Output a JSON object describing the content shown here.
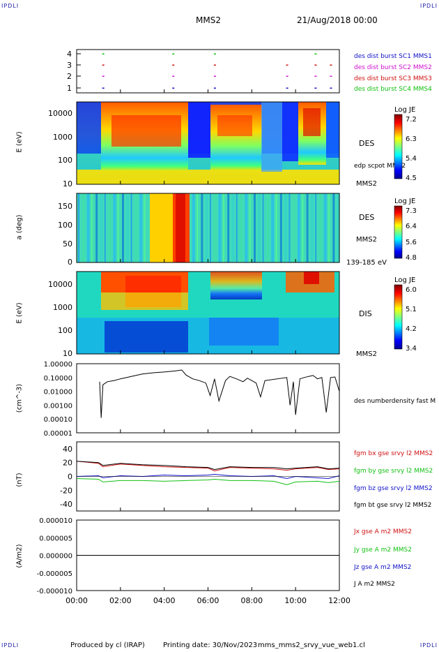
{
  "header": {
    "corner_tl": "IPDLI",
    "corner_tr": "IPDLI",
    "corner_bl": "IPDLI",
    "corner_br": "IPDLI",
    "mission": "MMS2",
    "date": "21/Aug/2018 00:00"
  },
  "footer": {
    "produced": "Produced by cl (IRAP)",
    "printing": "Printing date: 30/Nov/2023",
    "file": "mms_mms2_srvy_vue_web1.cl"
  },
  "colors": {
    "blue": "#1010c8",
    "magenta": "#d010d0",
    "red": "#d01010",
    "green": "#10c010",
    "black": "#000000"
  },
  "chart_data": [
    {
      "type": "scatter",
      "panel": "burst",
      "yticks": [
        "4",
        "3",
        "2",
        "1"
      ],
      "legend": [
        "des dist burst SC1 MMS1",
        "des dist burst SC2 MMS2",
        "des dist burst SC3 MMS3",
        "des dist burst SC4 MMS4"
      ],
      "series": [
        {
          "name": "des dist burst SC1 MMS1",
          "level": 1,
          "x": [
            1.2,
            4.4,
            6.3,
            9.6,
            10.9,
            11.6
          ]
        },
        {
          "name": "des dist burst SC2 MMS2",
          "level": 2,
          "x": [
            1.2,
            4.4,
            6.3,
            9.6,
            10.9,
            11.6
          ]
        },
        {
          "name": "des dist burst SC3 MMS3",
          "level": 3,
          "x": [
            1.2,
            4.4,
            6.3,
            9.6,
            10.9,
            11.6
          ]
        },
        {
          "name": "des dist burst SC4 MMS4",
          "level": 4,
          "x": [
            1.2,
            4.4,
            6.3,
            10.9
          ]
        }
      ]
    },
    {
      "type": "heatmap",
      "panel": "des-energy",
      "ylabel": "E (eV)",
      "yticks": [
        "10000",
        "1000",
        "100",
        "10"
      ],
      "right_labels": [
        "DES",
        "edp scpot MMS2",
        "MMS2"
      ],
      "colorbar": {
        "title": "Log JE",
        "ticks": [
          "7.2",
          "6.3",
          "5.4",
          "4.5"
        ]
      }
    },
    {
      "type": "heatmap",
      "panel": "des-pitch",
      "ylabel": "a (deg)",
      "yticks": [
        "150",
        "100",
        "50",
        "0"
      ],
      "right_labels": [
        "DES",
        "MMS2",
        "139-185 eV"
      ],
      "colorbar": {
        "title": "Log JE",
        "ticks": [
          "7.3",
          "6.4",
          "5.6",
          "4.8"
        ]
      }
    },
    {
      "type": "heatmap",
      "panel": "dis-energy",
      "ylabel": "E (eV)",
      "yticks": [
        "10000",
        "1000",
        "100",
        "10"
      ],
      "right_labels": [
        "DIS",
        "MMS2"
      ],
      "colorbar": {
        "title": "Log JE",
        "ticks": [
          "6.0",
          "5.1",
          "4.2",
          "3.4"
        ]
      }
    },
    {
      "type": "line",
      "panel": "density",
      "ylabel": "(cm^-3)",
      "yticks": [
        "1.00000",
        "0.10000",
        "0.01000",
        "0.00100",
        "0.00010",
        "0.00001"
      ],
      "legend": [
        "des numberdensity fast M"
      ],
      "series": [
        {
          "name": "des numberdensity fast M",
          "x": [
            1.05,
            1.12,
            1.2,
            1.4,
            1.7,
            2.0,
            2.5,
            3.0,
            3.5,
            4.0,
            4.5,
            4.8,
            5.0,
            5.3,
            5.6,
            5.9,
            6.1,
            6.3,
            6.5,
            6.8,
            7.0,
            7.3,
            7.6,
            7.8,
            8.0,
            8.2,
            8.4,
            8.6,
            9.6,
            9.75,
            9.9,
            10.0,
            10.2,
            10.4,
            10.6,
            10.8,
            11.0,
            11.2,
            11.4,
            11.6,
            11.8,
            12.0
          ],
          "y": [
            0.05,
            0.00012,
            0.03,
            0.05,
            0.06,
            0.08,
            0.12,
            0.18,
            0.22,
            0.25,
            0.3,
            0.35,
            0.15,
            0.08,
            0.06,
            0.04,
            0.005,
            0.08,
            0.002,
            0.06,
            0.12,
            0.08,
            0.05,
            0.09,
            0.06,
            0.04,
            0.004,
            0.06,
            0.1,
            0.001,
            0.05,
            0.0002,
            0.08,
            0.1,
            0.12,
            0.14,
            0.08,
            0.1,
            0.0003,
            0.1,
            0.11,
            0.01
          ]
        }
      ]
    },
    {
      "type": "line",
      "panel": "magnetic-field",
      "ylabel": "(nT)",
      "yticks": [
        "40",
        "20",
        "0",
        "-20",
        "-40"
      ],
      "ylim": [
        -50,
        50
      ],
      "legend": [
        "fgm bx gse srvy l2 MMS2",
        "fgm by gse srvy l2 MMS2",
        "fgm bz gse srvy l2 MMS2",
        "fgm bt gse srvy l2 MMS2"
      ],
      "series": [
        {
          "name": "fgm bx gse srvy l2 MMS2",
          "x": [
            0,
            1,
            1.2,
            2,
            3,
            4,
            5,
            6,
            6.3,
            7,
            8,
            9,
            9.6,
            10,
            11,
            11.5,
            12
          ],
          "y": [
            22,
            19,
            14,
            18,
            16,
            14,
            13,
            12,
            8,
            13,
            12,
            11,
            9,
            11,
            13,
            10,
            11
          ]
        },
        {
          "name": "fgm by gse srvy l2 MMS2",
          "x": [
            0,
            1,
            1.2,
            2,
            3,
            4,
            5,
            6,
            6.3,
            7,
            8,
            9,
            9.6,
            10,
            11,
            11.5,
            12
          ],
          "y": [
            -3,
            -4,
            -8,
            -6,
            -6,
            -7,
            -6,
            -5,
            -4,
            -6,
            -6,
            -7,
            -12,
            -8,
            -7,
            -9,
            -7
          ]
        },
        {
          "name": "fgm bz gse srvy l2 MMS2",
          "x": [
            0,
            1,
            1.2,
            2,
            3,
            4,
            5,
            6,
            6.3,
            7,
            8,
            9,
            9.6,
            10,
            11,
            11.5,
            12
          ],
          "y": [
            0,
            1,
            -2,
            1,
            0,
            2,
            1,
            2,
            3,
            1,
            0,
            1,
            -3,
            0,
            -2,
            -3,
            1
          ]
        },
        {
          "name": "fgm bt gse srvy l2 MMS2",
          "x": [
            0,
            1,
            1.2,
            2,
            3,
            4,
            5,
            6,
            6.3,
            7,
            8,
            9,
            9.6,
            10,
            11,
            11.5,
            12
          ],
          "y": [
            22,
            20,
            16,
            19,
            17,
            16,
            14,
            13,
            10,
            14,
            13,
            13,
            11,
            12,
            14,
            11,
            12
          ]
        }
      ]
    },
    {
      "type": "line",
      "panel": "current-density",
      "ylabel": "(A/m2)",
      "yticks": [
        "0.000010",
        "0.000005",
        "0.000000",
        "-0.000005",
        "-0.000010"
      ],
      "ylim": [
        -1e-05,
        1e-05
      ],
      "xticks": [
        "00:00",
        "02:00",
        "04:00",
        "06:00",
        "08:00",
        "10:00",
        "12:00"
      ],
      "legend": [
        "Jx gse A m2 MMS2",
        "Jy gse A m2 MMS2",
        "Jz gse A m2 MMS2",
        "J A m2 MMS2"
      ],
      "series": [
        {
          "name": "J A m2 MMS2",
          "x": [
            0,
            1.2,
            4.4,
            6.3,
            9.6,
            10.9,
            12
          ],
          "y": [
            0,
            0,
            0,
            0,
            0,
            0,
            0
          ]
        }
      ]
    }
  ]
}
